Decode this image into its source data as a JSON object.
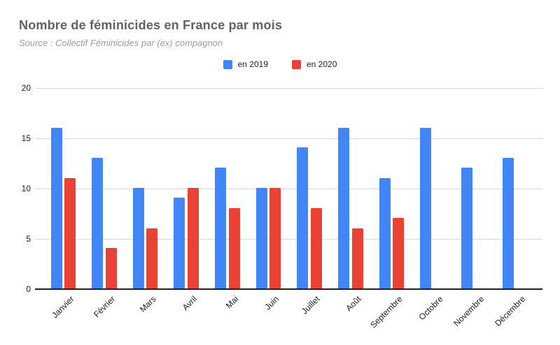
{
  "header": {
    "title": "Nombre de féminicides en France par mois",
    "subtitle": "Source : Collectif Féminicides par (ex) compagnon"
  },
  "legend": {
    "items": [
      {
        "label": "en 2019",
        "color": "#4285F4"
      },
      {
        "label": "en 2020",
        "color": "#EA4335"
      }
    ]
  },
  "chart_data": {
    "type": "bar",
    "title": "Nombre de féminicides en France par mois",
    "subtitle": "Source : Collectif Féminicides par (ex) compagnon",
    "categories": [
      "Janvier",
      "Février",
      "Mars",
      "Avril",
      "Mai",
      "Juin",
      "Juillet",
      "Août",
      "Septembre",
      "Octobre",
      "Novembre",
      "Décembre"
    ],
    "series": [
      {
        "name": "en 2019",
        "color": "#4285F4",
        "values": [
          16,
          13,
          10,
          9,
          12,
          10,
          14,
          16,
          11,
          16,
          12,
          13
        ]
      },
      {
        "name": "en 2020",
        "color": "#EA4335",
        "values": [
          11,
          4,
          6,
          10,
          8,
          10,
          8,
          6,
          7,
          null,
          null,
          null
        ]
      }
    ],
    "xlabel": "",
    "ylabel": "",
    "ylim": [
      0,
      20
    ],
    "yticks": [
      0,
      5,
      10,
      15,
      20
    ],
    "grid": true,
    "legend_position": "top",
    "grid_color": "#d9d9d9",
    "axis_color": "#212121"
  }
}
